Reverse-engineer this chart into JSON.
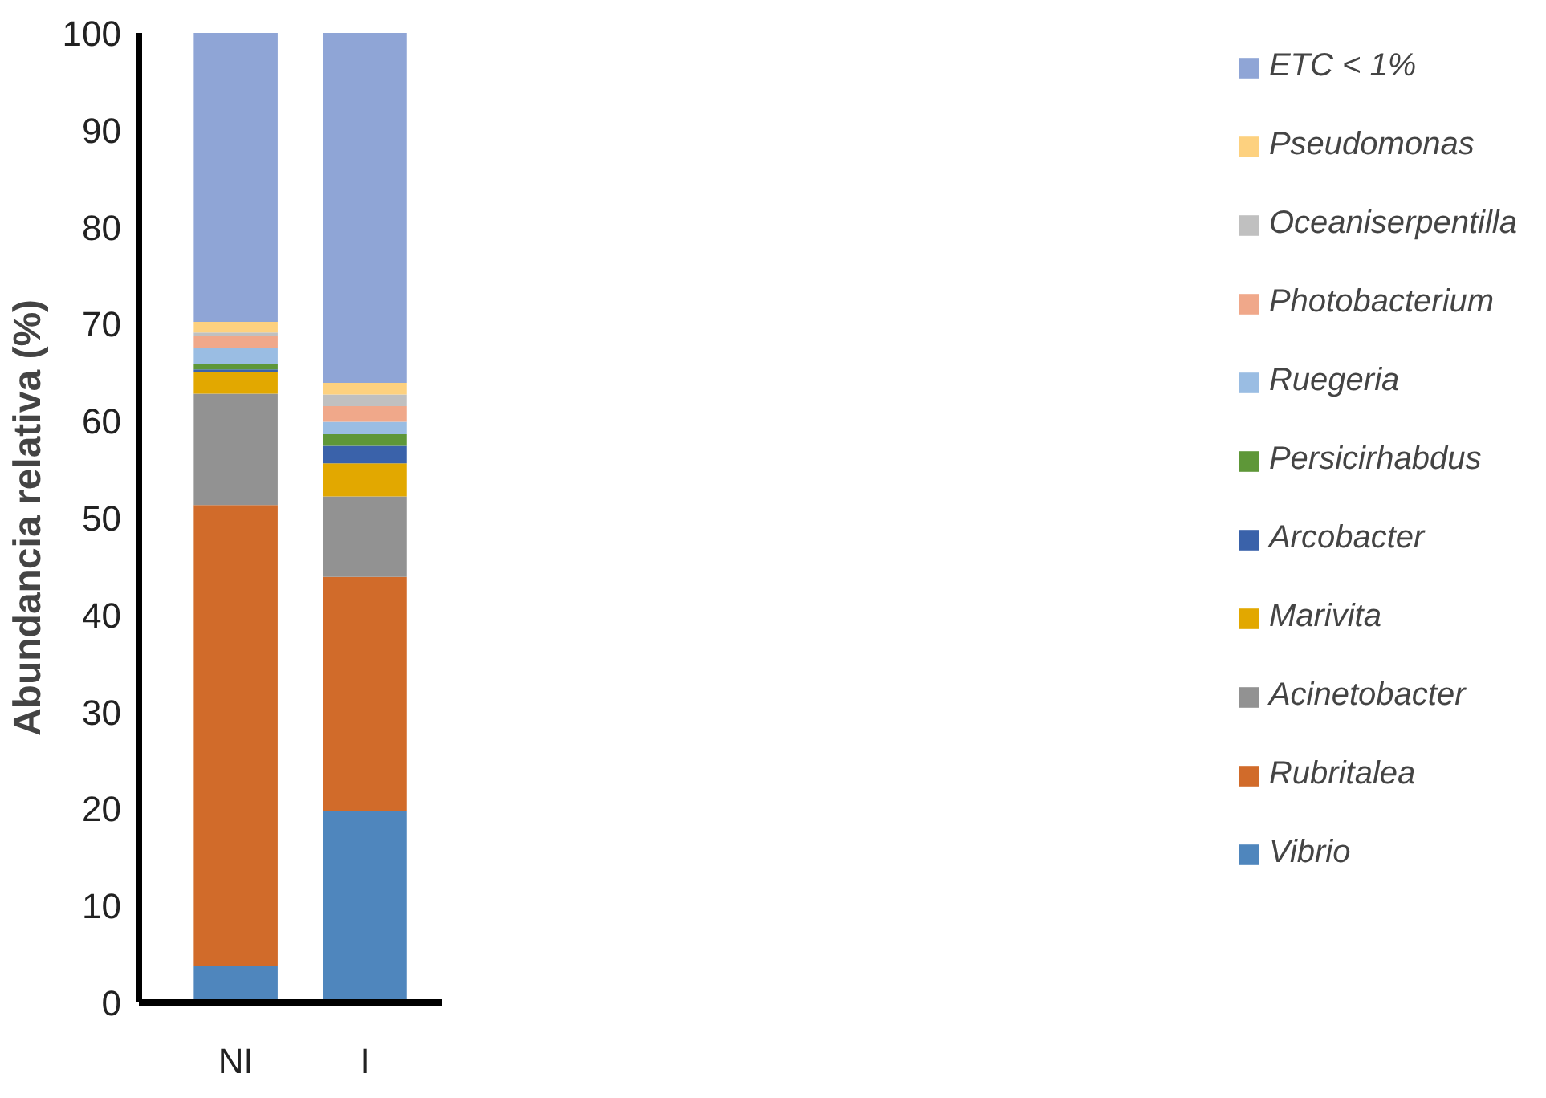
{
  "chart_data": {
    "type": "bar",
    "stacked": true,
    "ylabel": "Abundancia relativa (%)",
    "categories": [
      "NI",
      "I"
    ],
    "ylim": [
      0,
      100
    ],
    "yticks": [
      0,
      10,
      20,
      30,
      40,
      50,
      60,
      70,
      80,
      90,
      100
    ],
    "grid": false,
    "legend": "right",
    "series": [
      {
        "name": "Vibrio",
        "color": "#4f86bd",
        "values": [
          3.8,
          19.7
        ]
      },
      {
        "name": "Rubritalea",
        "color": "#d16b2a",
        "values": [
          47.5,
          24.2
        ]
      },
      {
        "name": "Acinetobacter",
        "color": "#929292",
        "values": [
          11.5,
          8.3
        ]
      },
      {
        "name": "Marivita",
        "color": "#e2a800",
        "values": [
          2.2,
          3.4
        ]
      },
      {
        "name": "Arcobacter",
        "color": "#3a62aa",
        "values": [
          0.3,
          1.8
        ]
      },
      {
        "name": "Persicirhabdus",
        "color": "#5e9738",
        "values": [
          0.6,
          1.2
        ]
      },
      {
        "name": "Ruegeria",
        "color": "#9abde3",
        "values": [
          1.6,
          1.3
        ]
      },
      {
        "name": "Photobacterium",
        "color": "#f0a88a",
        "values": [
          1.2,
          1.6
        ]
      },
      {
        "name": "Oceaniserpentilla",
        "color": "#c0c0c0",
        "values": [
          0.4,
          1.2
        ]
      },
      {
        "name": "Pseudomonas",
        "color": "#fdd17f",
        "values": [
          1.1,
          1.2
        ]
      },
      {
        "name": "ETC < 1%",
        "color": "#8fa5d6",
        "values": [
          29.8,
          36.1
        ]
      }
    ]
  }
}
